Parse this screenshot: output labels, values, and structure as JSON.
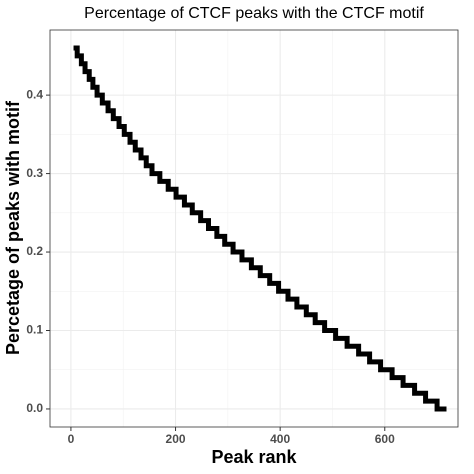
{
  "chart_data": {
    "type": "line",
    "title": "Percentage of CTCF peaks with the CTCF motif",
    "x_label": "Peak rank",
    "y_label": "Percetage of peaks with motif",
    "step": "post",
    "grid": true,
    "minor_grid": true,
    "series": [
      {
        "color": "#000000",
        "x": [
          5,
          12,
          20,
          27,
          35,
          42,
          50,
          60,
          71,
          81,
          92,
          102,
          113,
          123,
          134,
          144,
          155,
          170,
          186,
          201,
          217,
          232,
          248,
          263,
          279,
          294,
          310,
          327,
          345,
          362,
          380,
          397,
          415,
          432,
          450,
          467,
          485,
          506,
          528,
          550,
          571,
          592,
          614,
          635,
          657,
          678,
          700,
          718
        ],
        "values": [
          0.46,
          0.45,
          0.44,
          0.43,
          0.42,
          0.41,
          0.4,
          0.39,
          0.38,
          0.37,
          0.36,
          0.35,
          0.34,
          0.33,
          0.32,
          0.31,
          0.3,
          0.29,
          0.28,
          0.27,
          0.26,
          0.25,
          0.24,
          0.23,
          0.22,
          0.21,
          0.2,
          0.19,
          0.18,
          0.17,
          0.16,
          0.15,
          0.14,
          0.13,
          0.12,
          0.11,
          0.1,
          0.09,
          0.08,
          0.07,
          0.06,
          0.05,
          0.04,
          0.03,
          0.02,
          0.01,
          0,
          0
        ]
      }
    ],
    "xlim": [
      -40,
      740
    ],
    "ylim": [
      -0.023,
      0.483
    ],
    "xticks": [
      0,
      200,
      400,
      600
    ],
    "yticks": [
      {
        "value": 0,
        "label": "0.0"
      },
      0.1,
      0.2,
      0.3,
      0.4
    ]
  }
}
